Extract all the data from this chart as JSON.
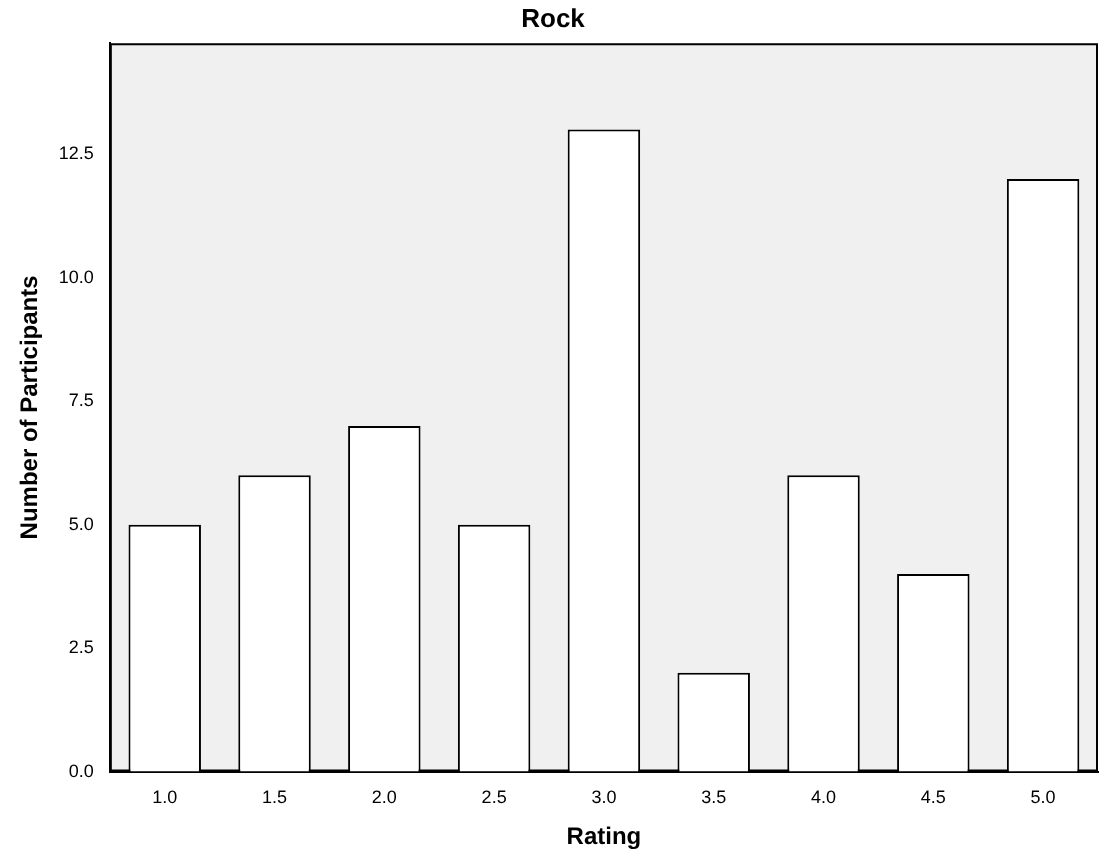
{
  "chart_data": {
    "type": "bar",
    "title": "Rock",
    "xlabel": "Rating",
    "ylabel": "Number of Participants",
    "categories": [
      "1.0",
      "1.5",
      "2.0",
      "2.5",
      "3.0",
      "3.5",
      "4.0",
      "4.5",
      "5.0"
    ],
    "values": [
      5,
      6,
      7,
      5,
      13,
      2,
      6,
      4,
      12
    ],
    "color": "#ffffff",
    "ylim": [
      0,
      14.75
    ],
    "yticks": [
      {
        "value": 0,
        "label": "0.0"
      },
      {
        "value": 2.5,
        "label": "2.5"
      },
      {
        "value": 5,
        "label": "5.0"
      },
      {
        "value": 7.5,
        "label": "7.5"
      },
      {
        "value": 10,
        "label": "10.0"
      },
      {
        "value": 12.5,
        "label": "12.5"
      }
    ],
    "grid": false,
    "legend": false
  }
}
